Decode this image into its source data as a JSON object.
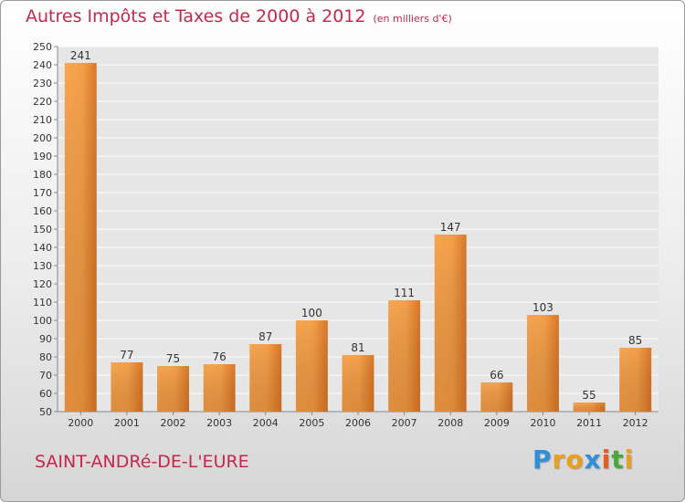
{
  "chart_data": {
    "type": "bar",
    "title": "Autres Impôts et Taxes de 2000 à 2012",
    "subtitle": "(en milliers d'€)",
    "categories": [
      "2000",
      "2001",
      "2002",
      "2003",
      "2004",
      "2005",
      "2006",
      "2007",
      "2008",
      "2009",
      "2010",
      "2011",
      "2012"
    ],
    "values": [
      241,
      77,
      75,
      76,
      87,
      100,
      81,
      111,
      147,
      66,
      103,
      55,
      85
    ],
    "data_labels": [
      "241",
      "77",
      "75",
      "76",
      "87",
      "100",
      "81",
      "111",
      "147",
      "66",
      "103",
      "55",
      "85"
    ],
    "ylim": [
      50,
      250
    ],
    "yticks": [
      50,
      60,
      70,
      80,
      90,
      100,
      110,
      120,
      130,
      140,
      150,
      160,
      170,
      180,
      190,
      200,
      210,
      220,
      230,
      240,
      250
    ],
    "grid": true,
    "bar_color": "#e98a2e"
  },
  "footer": {
    "commune": "SAINT-ANDRé-DE-L'EURE",
    "logo_letters": [
      "P",
      "r",
      "o",
      "x",
      "i",
      "t",
      "i"
    ],
    "logo_colors": [
      "#2f8fd8",
      "#e8a020",
      "#e8a020",
      "#2f8fd8",
      "#e85a20",
      "#4aa83a",
      "#e8a020"
    ]
  }
}
